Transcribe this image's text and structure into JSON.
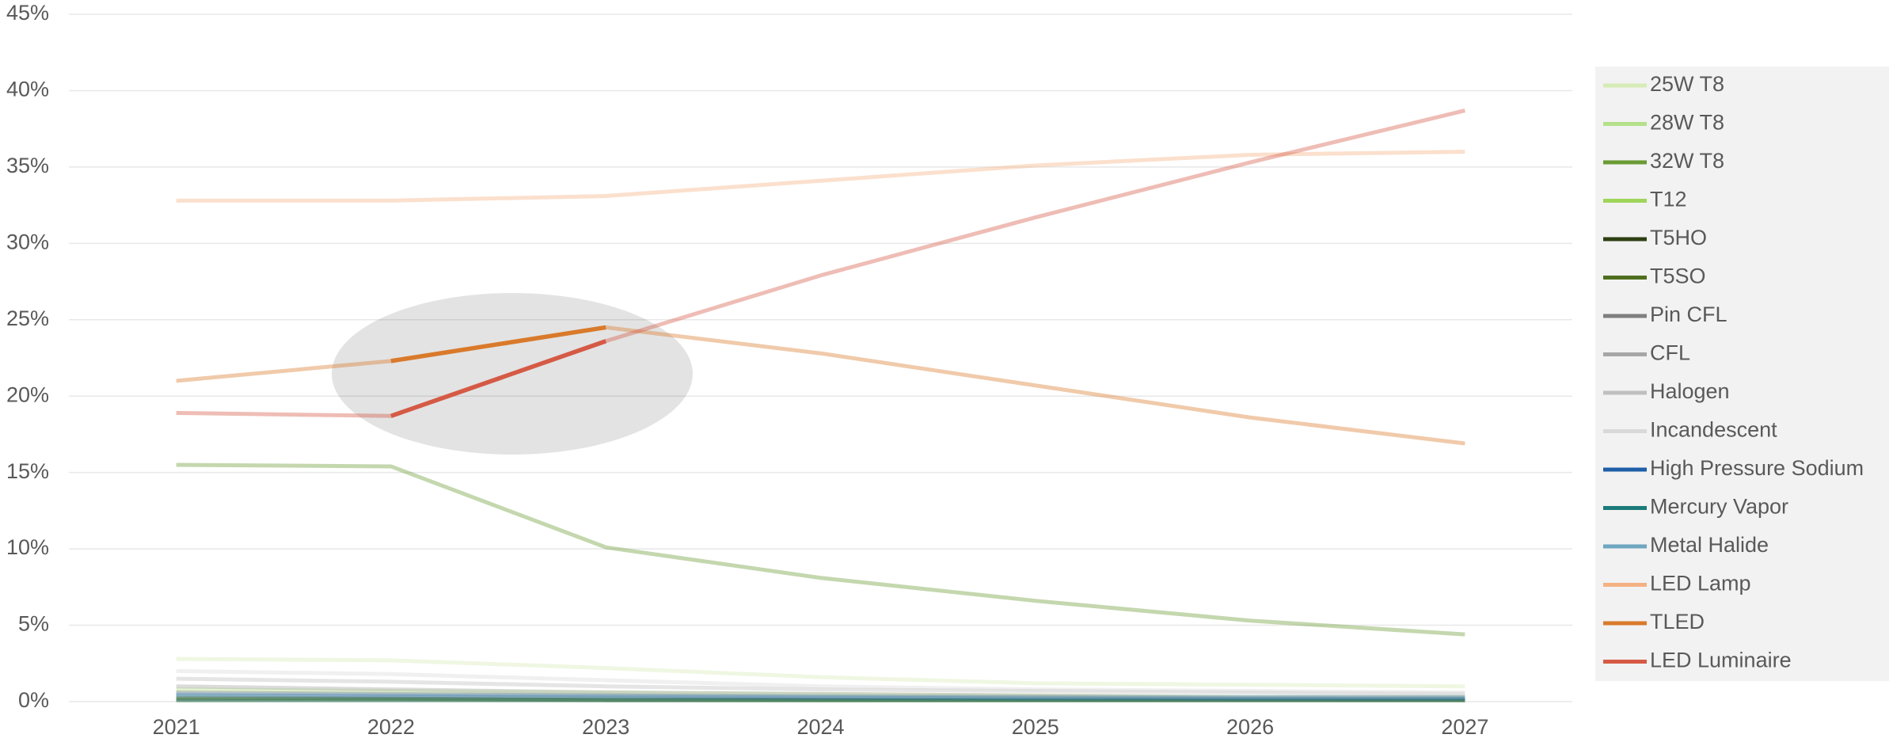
{
  "chart_data": {
    "type": "line",
    "categories": [
      "2021",
      "2022",
      "2023",
      "2024",
      "2025",
      "2026",
      "2027"
    ],
    "ylim": [
      0,
      45
    ],
    "yticks": [
      {
        "value": 0,
        "label": "0%"
      },
      {
        "value": 5,
        "label": "5%"
      },
      {
        "value": 10,
        "label": "10%"
      },
      {
        "value": 15,
        "label": "15%"
      },
      {
        "value": 20,
        "label": "20%"
      },
      {
        "value": 25,
        "label": "25%"
      },
      {
        "value": 30,
        "label": "30%"
      },
      {
        "value": 35,
        "label": "35%"
      },
      {
        "value": 40,
        "label": "40%"
      },
      {
        "value": 45,
        "label": "45%"
      }
    ],
    "grid": true,
    "legend": "right",
    "faded_opacity": 0.4,
    "emphasis_span": [
      1,
      2
    ],
    "series": [
      {
        "name": "25W T8",
        "color": "#d6ecb6",
        "values": [
          2.8,
          2.7,
          2.2,
          1.6,
          1.2,
          1.1,
          1.0
        ]
      },
      {
        "name": "28W T8",
        "color": "#b5e08a",
        "values": [
          0.8,
          0.7,
          0.6,
          0.5,
          0.4,
          0.3,
          0.3
        ]
      },
      {
        "name": "32W T8",
        "color": "#6b9a35",
        "values": [
          15.5,
          15.4,
          10.1,
          8.1,
          6.6,
          5.3,
          4.4
        ]
      },
      {
        "name": "T12",
        "color": "#9fd55a",
        "values": [
          0.3,
          0.2,
          0.2,
          0.1,
          0.1,
          0.1,
          0.1
        ]
      },
      {
        "name": "T5HO",
        "color": "#2e3f12",
        "values": [
          0.2,
          0.2,
          0.1,
          0.1,
          0.1,
          0.1,
          0.1
        ]
      },
      {
        "name": "T5SO",
        "color": "#4f6f1f",
        "values": [
          0.1,
          0.1,
          0.1,
          0.1,
          0.1,
          0.1,
          0.1
        ]
      },
      {
        "name": "Pin CFL",
        "color": "#7f7f7f",
        "values": [
          0.6,
          0.5,
          0.4,
          0.3,
          0.3,
          0.2,
          0.2
        ]
      },
      {
        "name": "CFL",
        "color": "#a6a6a6",
        "values": [
          1.0,
          0.8,
          0.6,
          0.5,
          0.4,
          0.3,
          0.3
        ]
      },
      {
        "name": "Halogen",
        "color": "#bfbfbf",
        "values": [
          1.5,
          1.3,
          1.0,
          0.8,
          0.7,
          0.6,
          0.5
        ]
      },
      {
        "name": "Incandescent",
        "color": "#d9d9d9",
        "values": [
          2.0,
          1.8,
          1.4,
          1.0,
          0.8,
          0.7,
          0.6
        ]
      },
      {
        "name": "High Pressure Sodium",
        "color": "#1f5fa8",
        "values": [
          0.4,
          0.35,
          0.3,
          0.25,
          0.2,
          0.2,
          0.2
        ]
      },
      {
        "name": "Mercury Vapor",
        "color": "#1b7a7a",
        "values": [
          0.1,
          0.1,
          0.1,
          0.1,
          0.1,
          0.1,
          0.1
        ]
      },
      {
        "name": "Metal Halide",
        "color": "#6ea6c0",
        "values": [
          0.5,
          0.45,
          0.4,
          0.35,
          0.3,
          0.3,
          0.3
        ]
      },
      {
        "name": "LED Lamp",
        "color": "#f4b183",
        "values": [
          32.8,
          32.8,
          33.1,
          34.1,
          35.1,
          35.8,
          36.0
        ]
      },
      {
        "name": "TLED",
        "color": "#d97a2b",
        "emphasis": true,
        "values": [
          21.0,
          22.3,
          24.5,
          22.8,
          20.7,
          18.6,
          16.9
        ]
      },
      {
        "name": "LED Luminaire",
        "color": "#d55a45",
        "emphasis": true,
        "values": [
          18.9,
          18.7,
          23.6,
          27.9,
          31.7,
          35.3,
          38.7
        ]
      }
    ]
  }
}
